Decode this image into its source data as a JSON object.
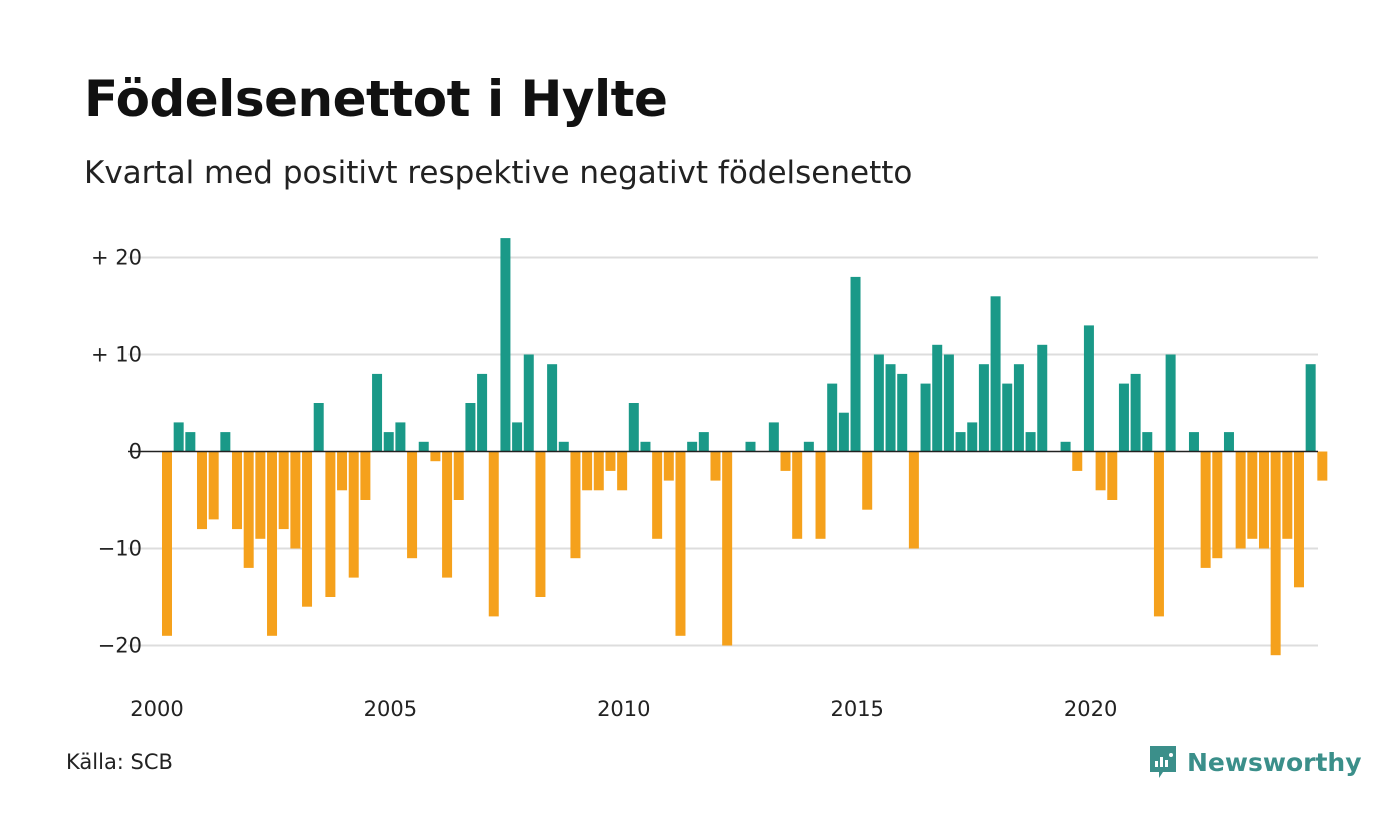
{
  "title": "Födelsenettot i Hylte",
  "subtitle": "Kvartal med positivt respektive negativt födelsenetto",
  "source": "Källa: SCB",
  "brand": "Newsworthy",
  "colors": {
    "positive": "#1a9988",
    "negative": "#f5a11c",
    "grid": "#dddddd",
    "baseline": "#222222",
    "brand": "#3b8f8a"
  },
  "chart_data": {
    "type": "bar",
    "title": "Födelsenettot i Hylte",
    "subtitle": "Kvartal med positivt respektive negativt födelsenetto",
    "xlabel": "",
    "ylabel": "",
    "start_year": 2000,
    "frequency": "quarterly",
    "ylim": [
      -24,
      22
    ],
    "yticks": [
      {
        "value": 20,
        "label": "+ 20"
      },
      {
        "value": 10,
        "label": "+ 10"
      },
      {
        "value": 0,
        "label": "0"
      },
      {
        "value": -10,
        "label": "−10"
      },
      {
        "value": -20,
        "label": "−20"
      }
    ],
    "xticks": [
      {
        "value": 2000,
        "label": "2000"
      },
      {
        "value": 2005,
        "label": "2005"
      },
      {
        "value": 2010,
        "label": "2010"
      },
      {
        "value": 2015,
        "label": "2015"
      },
      {
        "value": 2020,
        "label": "2020"
      }
    ],
    "grid": true,
    "values": [
      -19,
      3,
      2,
      -8,
      -7,
      2,
      -8,
      -12,
      -9,
      -19,
      -8,
      -10,
      -16,
      5,
      -15,
      -4,
      -13,
      -5,
      8,
      2,
      3,
      -11,
      1,
      -1,
      -13,
      -5,
      5,
      8,
      -17,
      22,
      3,
      10,
      -15,
      9,
      1,
      -11,
      -4,
      -4,
      -2,
      -4,
      5,
      1,
      -9,
      -3,
      -19,
      1,
      2,
      -3,
      -20,
      0,
      1,
      0,
      3,
      -2,
      -9,
      1,
      -9,
      7,
      4,
      18,
      -6,
      10,
      9,
      8,
      -10,
      7,
      11,
      10,
      2,
      3,
      9,
      16,
      7,
      9,
      2,
      11,
      0,
      1,
      -2,
      13,
      -4,
      -5,
      7,
      8,
      2,
      -17,
      10,
      0,
      2,
      -12,
      -11,
      2,
      -10,
      -9,
      -10,
      -21,
      -9,
      -14,
      9,
      -3
    ]
  }
}
